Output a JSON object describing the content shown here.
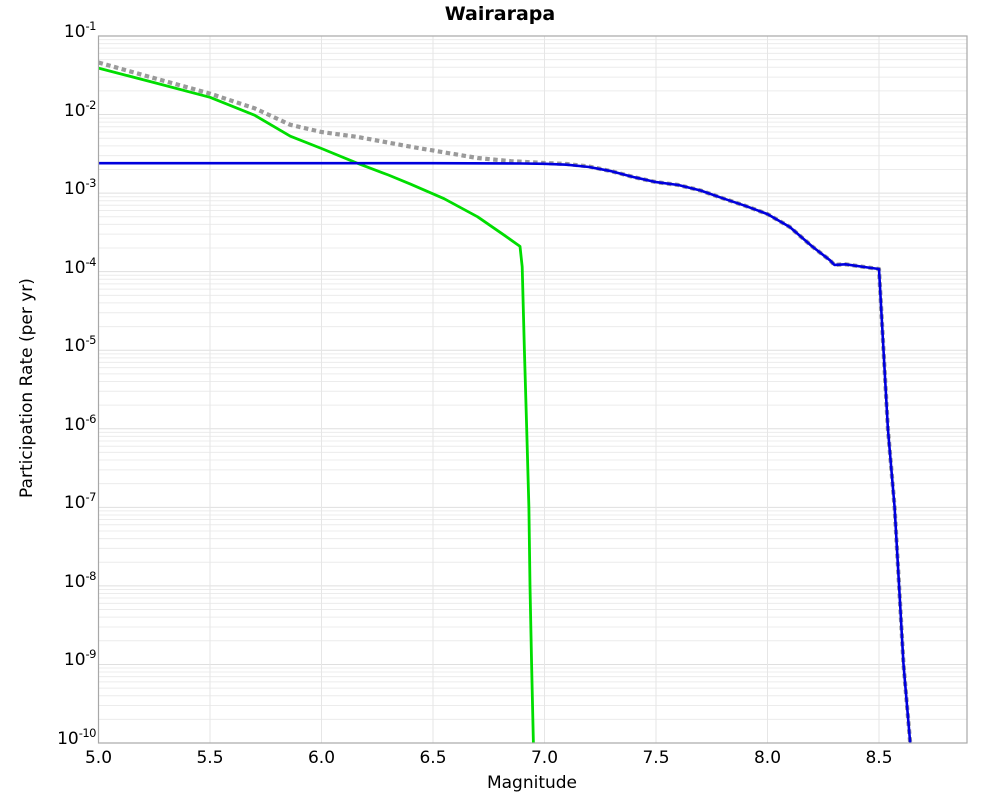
{
  "title": "Wairarapa",
  "chart_data": {
    "type": "line",
    "title": "Wairarapa",
    "xlabel": "Magnitude",
    "ylabel": "Participation Rate (per yr)",
    "x_axis": {
      "min": 5.0,
      "max": 8.9,
      "ticks": [
        5.0,
        5.5,
        6.0,
        6.5,
        7.0,
        7.5,
        8.0,
        8.5
      ],
      "tick_labels": [
        "5.0",
        "5.5",
        "6.0",
        "6.5",
        "7.0",
        "7.5",
        "8.0",
        "8.5"
      ]
    },
    "y_axis": {
      "scale": "log",
      "min_exponent": -10,
      "max_exponent": -1,
      "tick_exponents": [
        -1,
        -2,
        -3,
        -4,
        -5,
        -6,
        -7,
        -8,
        -9,
        -10
      ],
      "tick_base": "10"
    },
    "grid": {
      "vertical": true,
      "log_minor_horizontal": true
    },
    "legend": "none",
    "colors": {
      "dotted_gray": "#9a9a9a",
      "green": "#00dd00",
      "blue": "#0000dd",
      "grid_minor": "#ececec",
      "grid_major": "#dfdfdf",
      "grid_vertical": "#e6e6e6",
      "border": "#a8a8a8"
    },
    "series": [
      {
        "name": "total-rate-dotted",
        "style": "dotted",
        "color": "#9a9a9a",
        "width": 4.2,
        "points": [
          [
            5.0,
            0.046
          ],
          [
            5.25,
            0.029
          ],
          [
            5.5,
            0.0185
          ],
          [
            5.7,
            0.012
          ],
          [
            5.86,
            0.0074
          ],
          [
            6.0,
            0.006
          ],
          [
            6.16,
            0.0052
          ],
          [
            6.4,
            0.0039
          ],
          [
            6.55,
            0.0033
          ],
          [
            6.7,
            0.0028
          ],
          [
            6.85,
            0.00255
          ],
          [
            7.0,
            0.00242
          ],
          [
            7.1,
            0.00235
          ],
          [
            7.2,
            0.00218
          ],
          [
            7.3,
            0.0019
          ],
          [
            7.4,
            0.0016
          ],
          [
            7.5,
            0.00138
          ],
          [
            7.6,
            0.00127
          ],
          [
            7.7,
            0.00108
          ],
          [
            7.8,
            0.00086
          ],
          [
            7.9,
            0.00069
          ],
          [
            8.0,
            0.00054
          ],
          [
            8.1,
            0.00037
          ],
          [
            8.2,
            0.00021
          ],
          [
            8.28,
            0.00014
          ],
          [
            8.3,
            0.000122
          ],
          [
            8.35,
            0.000124
          ],
          [
            8.45,
            0.000113
          ],
          [
            8.5,
            0.000108
          ],
          [
            8.52,
            1e-05
          ],
          [
            8.54,
            1e-06
          ],
          [
            8.57,
            1e-07
          ],
          [
            8.59,
            1e-08
          ],
          [
            8.61,
            1e-09
          ],
          [
            8.64,
            1e-10
          ]
        ]
      },
      {
        "name": "gr-tail-green",
        "style": "solid",
        "color": "#00dd00",
        "width": 2.8,
        "points": [
          [
            5.0,
            0.039
          ],
          [
            5.25,
            0.0255
          ],
          [
            5.5,
            0.0166
          ],
          [
            5.7,
            0.0098
          ],
          [
            5.86,
            0.0053
          ],
          [
            6.0,
            0.0037
          ],
          [
            6.16,
            0.0024
          ],
          [
            6.3,
            0.0017
          ],
          [
            6.4,
            0.0013
          ],
          [
            6.55,
            0.00085
          ],
          [
            6.7,
            0.0005
          ],
          [
            6.82,
            0.00029
          ],
          [
            6.89,
            0.00021
          ],
          [
            6.9,
            0.000115
          ],
          [
            6.91,
            1e-05
          ],
          [
            6.92,
            1e-06
          ],
          [
            6.93,
            1e-07
          ],
          [
            6.935,
            1e-08
          ],
          [
            6.942,
            1e-09
          ],
          [
            6.95,
            1e-10
          ]
        ]
      },
      {
        "name": "characteristic-blue",
        "style": "solid",
        "color": "#0000dd",
        "width": 2.6,
        "points": [
          [
            5.0,
            0.0024
          ],
          [
            5.5,
            0.0024
          ],
          [
            6.0,
            0.0024
          ],
          [
            6.5,
            0.0024
          ],
          [
            6.9,
            0.00238
          ],
          [
            7.0,
            0.00236
          ],
          [
            7.1,
            0.0023
          ],
          [
            7.2,
            0.00215
          ],
          [
            7.3,
            0.0019
          ],
          [
            7.4,
            0.0016
          ],
          [
            7.5,
            0.00138
          ],
          [
            7.6,
            0.00127
          ],
          [
            7.7,
            0.00108
          ],
          [
            7.8,
            0.00086
          ],
          [
            7.9,
            0.00069
          ],
          [
            8.0,
            0.00054
          ],
          [
            8.1,
            0.00037
          ],
          [
            8.2,
            0.00021
          ],
          [
            8.28,
            0.00014
          ],
          [
            8.3,
            0.000122
          ],
          [
            8.35,
            0.000124
          ],
          [
            8.45,
            0.000113
          ],
          [
            8.5,
            0.000108
          ],
          [
            8.52,
            1e-05
          ],
          [
            8.54,
            1e-06
          ],
          [
            8.57,
            1e-07
          ],
          [
            8.59,
            1e-08
          ],
          [
            8.61,
            1e-09
          ],
          [
            8.64,
            1e-10
          ]
        ]
      }
    ]
  }
}
